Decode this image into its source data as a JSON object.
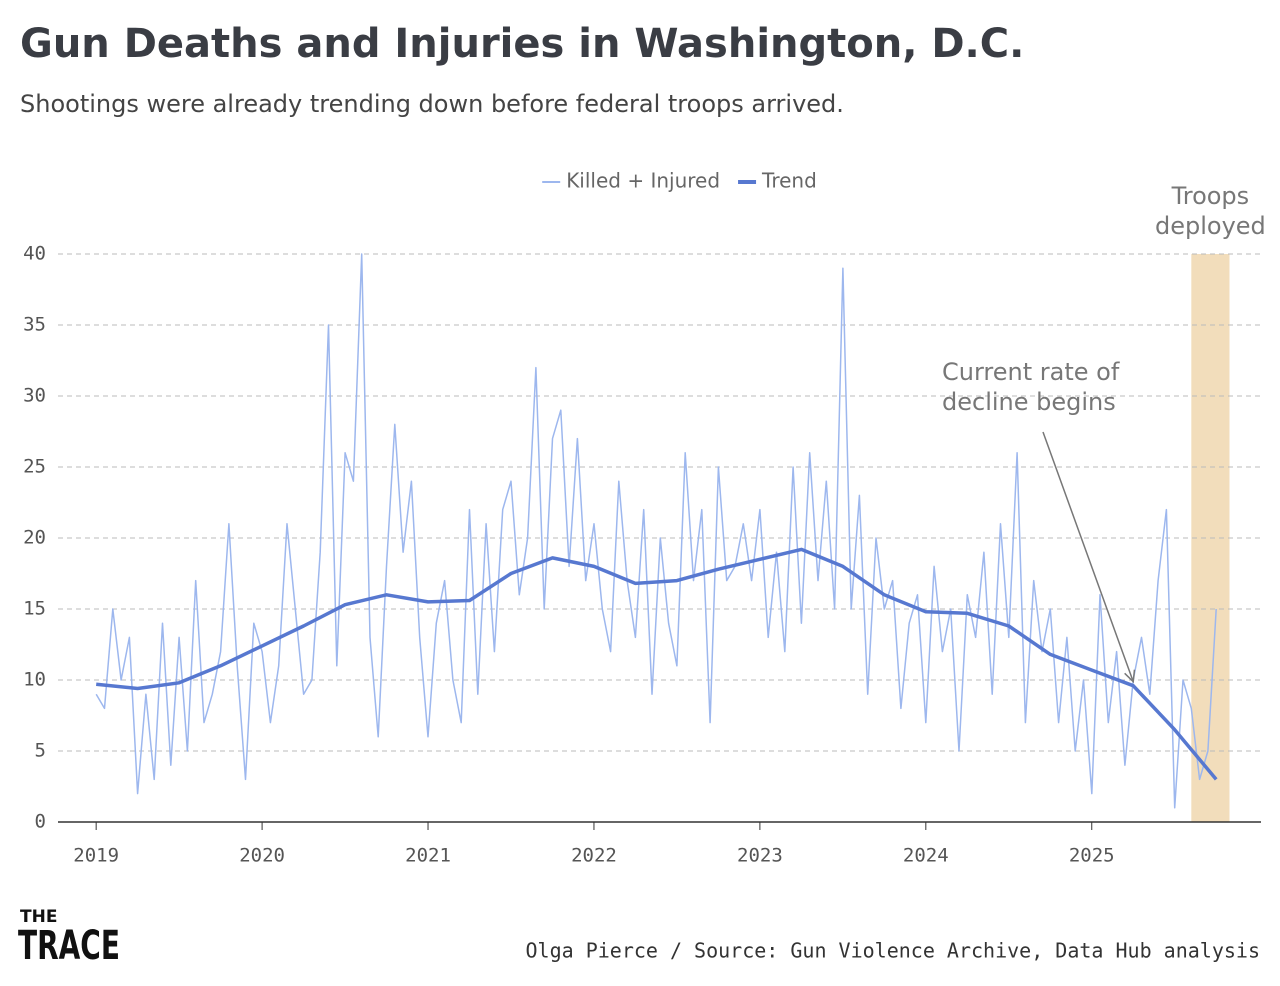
{
  "chart_data": {
    "type": "line",
    "title": "Gun Deaths and Injuries in Washington, D.C.",
    "subtitle": "Shootings were already trending down before federal troops arrived.",
    "xlim": [
      2018.77,
      2026.02
    ],
    "xticks": [
      2019,
      2020,
      2021,
      2022,
      2023,
      2024,
      2025
    ],
    "ylim": [
      0,
      40
    ],
    "yticks": [
      0,
      5,
      10,
      15,
      20,
      25,
      30,
      35,
      40
    ],
    "grid": true,
    "legend": "top",
    "series": [
      {
        "name": "Killed + Injured",
        "color": "#9db7ee",
        "width": 1.5,
        "x": [
          2019,
          2019.05,
          2019.1,
          2019.15,
          2019.2,
          2019.25,
          2019.3,
          2019.35,
          2019.4,
          2019.45,
          2019.5,
          2019.55,
          2019.6,
          2019.65,
          2019.7,
          2019.75,
          2019.8,
          2019.85,
          2019.9,
          2019.95,
          2020,
          2020.05,
          2020.1,
          2020.15,
          2020.2,
          2020.25,
          2020.3,
          2020.35,
          2020.4,
          2020.45,
          2020.5,
          2020.55,
          2020.6,
          2020.65,
          2020.7,
          2020.75,
          2020.8,
          2020.85,
          2020.9,
          2020.95,
          2021,
          2021.05,
          2021.1,
          2021.15,
          2021.2,
          2021.25,
          2021.3,
          2021.35,
          2021.4,
          2021.45,
          2021.5,
          2021.55,
          2021.6,
          2021.65,
          2021.7,
          2021.75,
          2021.8,
          2021.85,
          2021.9,
          2021.95,
          2022,
          2022.05,
          2022.1,
          2022.15,
          2022.2,
          2022.25,
          2022.3,
          2022.35,
          2022.4,
          2022.45,
          2022.5,
          2022.55,
          2022.6,
          2022.65,
          2022.7,
          2022.75,
          2022.8,
          2022.85,
          2022.9,
          2022.95,
          2023,
          2023.05,
          2023.1,
          2023.15,
          2023.2,
          2023.25,
          2023.3,
          2023.35,
          2023.4,
          2023.45,
          2023.5,
          2023.55,
          2023.6,
          2023.65,
          2023.7,
          2023.75,
          2023.8,
          2023.85,
          2023.9,
          2023.95,
          2024,
          2024.05,
          2024.1,
          2024.15,
          2024.2,
          2024.25,
          2024.3,
          2024.35,
          2024.4,
          2024.45,
          2024.5,
          2024.55,
          2024.6,
          2024.65,
          2024.7,
          2024.75,
          2024.8,
          2024.85,
          2024.9,
          2024.95,
          2025,
          2025.05,
          2025.1,
          2025.15,
          2025.2,
          2025.25,
          2025.3,
          2025.35,
          2025.4,
          2025.45,
          2025.5,
          2025.55,
          2025.6,
          2025.65,
          2025.7,
          2025.75
        ],
        "values": [
          9,
          8,
          15,
          10,
          13,
          2,
          9,
          3,
          14,
          4,
          13,
          5,
          17,
          7,
          9,
          12,
          21,
          11,
          3,
          14,
          12,
          7,
          11,
          21,
          15,
          9,
          10,
          19,
          35,
          11,
          26,
          24,
          40,
          13,
          6,
          18,
          28,
          19,
          24,
          13,
          6,
          14,
          17,
          10,
          7,
          22,
          9,
          21,
          12,
          22,
          24,
          16,
          20,
          32,
          15,
          27,
          29,
          18,
          27,
          17,
          21,
          15,
          12,
          24,
          17,
          13,
          22,
          9,
          20,
          14,
          11,
          26,
          17,
          22,
          7,
          25,
          17,
          18,
          21,
          17,
          22,
          13,
          19,
          12,
          25,
          14,
          26,
          17,
          24,
          15,
          39,
          15,
          23,
          9,
          20,
          15,
          17,
          8,
          14,
          16,
          7,
          18,
          12,
          15,
          5,
          16,
          13,
          19,
          9,
          21,
          13,
          26,
          7,
          17,
          12,
          15,
          7,
          13,
          5,
          10,
          2,
          16,
          7,
          12,
          4,
          10,
          13,
          9,
          17,
          22,
          1,
          10,
          8,
          3,
          5,
          15
        ]
      },
      {
        "name": "Trend",
        "color": "#5778d0",
        "width": 3.5,
        "x": [
          2019,
          2019.25,
          2019.5,
          2019.75,
          2020,
          2020.25,
          2020.5,
          2020.75,
          2021,
          2021.25,
          2021.5,
          2021.75,
          2022,
          2022.25,
          2022.5,
          2022.75,
          2023,
          2023.25,
          2023.5,
          2023.75,
          2024,
          2024.25,
          2024.5,
          2024.75,
          2025,
          2025.25,
          2025.5,
          2025.75
        ],
        "values": [
          9.7,
          9.4,
          9.8,
          11.0,
          12.4,
          13.8,
          15.3,
          16.0,
          15.5,
          15.6,
          17.5,
          18.6,
          18.0,
          16.8,
          17.0,
          17.8,
          18.5,
          19.2,
          18.0,
          16.0,
          14.8,
          14.7,
          13.8,
          11.8,
          10.7,
          9.6,
          6.5,
          3.0
        ]
      }
    ],
    "shaded_region": {
      "x": [
        2025.6,
        2025.83
      ],
      "color": "#f2ddbb",
      "label": [
        "Troops",
        "deployed"
      ]
    },
    "annotation": {
      "label": [
        "Current rate of",
        "decline begins"
      ],
      "point": [
        2025.25,
        9.6
      ]
    },
    "footer": {
      "logo": [
        "THE",
        "TRACE"
      ],
      "credit": "Olga Pierce / Source: Gun Violence Archive, Data Hub analysis"
    }
  }
}
